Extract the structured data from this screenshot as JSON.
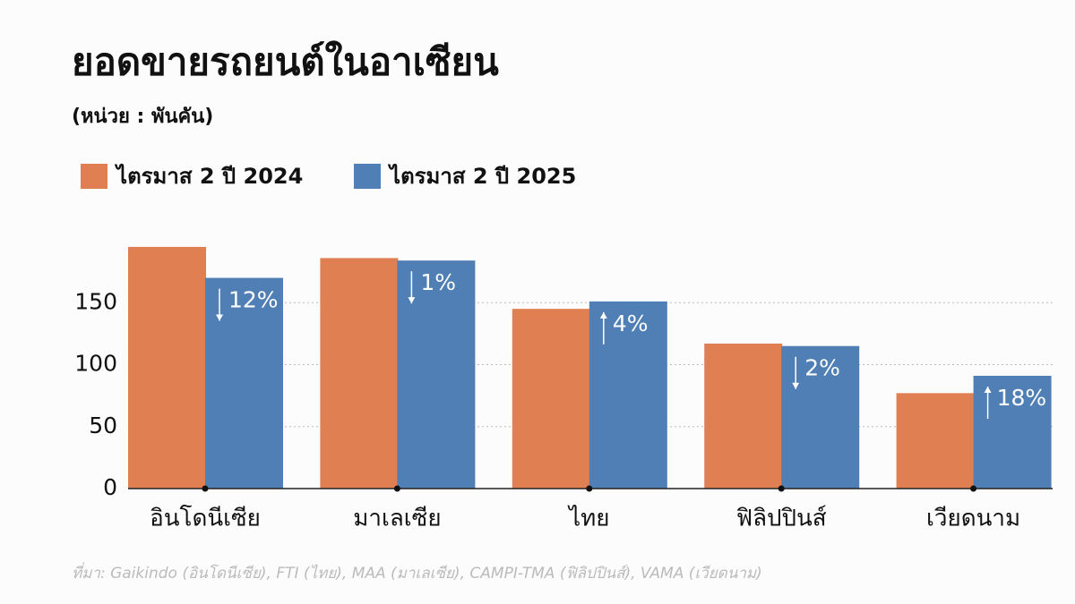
{
  "chart_data": {
    "type": "bar",
    "title": "ยอดขายรถยนต์ในอาเซียน",
    "subtitle": "(หน่วย : พันคัน)",
    "categories": [
      "อินโดนีเซีย",
      "มาเลเซีย",
      "ไทย",
      "ฟิลิปปินส์",
      "เวียดนาม"
    ],
    "series": [
      {
        "name": "ไตรมาส 2 ปี 2024",
        "color": "#e07f52",
        "values": [
          195,
          186,
          145,
          117,
          77
        ]
      },
      {
        "name": "ไตรมาส 2 ปี 2025",
        "color": "#4f7fb5",
        "values": [
          170,
          184,
          151,
          115,
          91
        ]
      }
    ],
    "annotations": [
      {
        "text": "12%",
        "direction": "down"
      },
      {
        "text": "1%",
        "direction": "down"
      },
      {
        "text": "4%",
        "direction": "up"
      },
      {
        "text": "2%",
        "direction": "down"
      },
      {
        "text": "18%",
        "direction": "up"
      }
    ],
    "ylim": [
      0,
      200
    ],
    "yticks": [
      0,
      50,
      100,
      150
    ],
    "grid": true,
    "legend": "top-left",
    "source": "ที่มา: Gaikindo (อินโดนีเซีย), FTI (ไทย), MAA (มาเลเซีย), CAMPI-TMA (ฟิลิปปินส์), VAMA (เวียดนาม)"
  }
}
